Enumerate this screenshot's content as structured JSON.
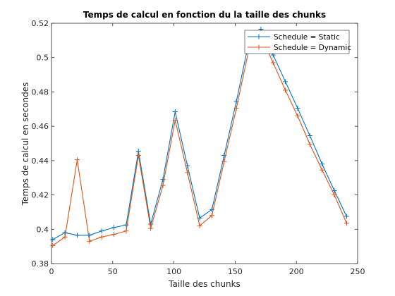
{
  "chart_data": {
    "type": "line",
    "title": "Temps de calcul en fonction du la taille des chunks",
    "xlabel": "Taille des chunks",
    "ylabel": "Temps de calcul en secondes",
    "xlim": [
      0,
      250
    ],
    "ylim": [
      0.38,
      0.52
    ],
    "xticks": [
      0,
      50,
      100,
      150,
      200,
      250
    ],
    "yticks": [
      0.38,
      0.4,
      0.42,
      0.44,
      0.46,
      0.48,
      0.5,
      0.52
    ],
    "xtick_labels": [
      "0",
      "50",
      "100",
      "150",
      "200",
      "250"
    ],
    "ytick_labels": [
      "0.38",
      "0.4",
      "0.42",
      "0.44",
      "0.46",
      "0.48",
      "0.5",
      "0.52"
    ],
    "grid": false,
    "legend_position": "top-right",
    "x": [
      1,
      11,
      21,
      31,
      41,
      51,
      61,
      71,
      81,
      91,
      101,
      111,
      121,
      131,
      141,
      151,
      161,
      171,
      181,
      191,
      201,
      211,
      221,
      231,
      241
    ],
    "series": [
      {
        "name": "Schedule = Static",
        "color": "#0072BD",
        "values": [
          0.394,
          0.398,
          0.3965,
          0.3965,
          0.399,
          0.401,
          0.4025,
          0.4455,
          0.403,
          0.429,
          0.4685,
          0.437,
          0.4065,
          0.4115,
          0.443,
          0.4745,
          0.5085,
          0.5165,
          0.5015,
          0.486,
          0.4705,
          0.4545,
          0.438,
          0.4225,
          0.4075
        ]
      },
      {
        "name": "Schedule = Dynamic",
        "color": "#D95319",
        "values": [
          0.3905,
          0.3955,
          0.4405,
          0.393,
          0.3955,
          0.397,
          0.399,
          0.443,
          0.4005,
          0.4255,
          0.4635,
          0.433,
          0.402,
          0.408,
          0.4395,
          0.4705,
          0.504,
          0.5125,
          0.497,
          0.481,
          0.466,
          0.4495,
          0.4345,
          0.42,
          0.4035
        ]
      }
    ]
  }
}
